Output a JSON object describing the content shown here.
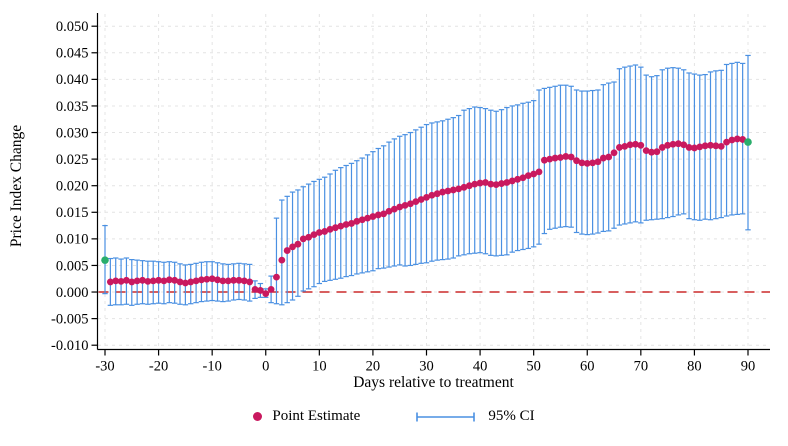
{
  "figure": {
    "y_axis_title": "Price Index Change",
    "x_axis_title": "Days relative to treatment",
    "legend": {
      "point_label": "Point Estimate",
      "ci_label": "95% CI"
    }
  },
  "colors": {
    "point": "#c9195f",
    "ci": "#4a90e2",
    "endpoint": "#2aae6c",
    "zero_line": "#cc2a2a",
    "grid": "#e4e4e4",
    "axis": "#000000"
  },
  "chart_data": {
    "type": "scatter",
    "title": "",
    "xlabel": "Days relative to treatment",
    "ylabel": "Price Index Change",
    "xlim": [
      -30,
      90
    ],
    "ylim": [
      -0.01,
      0.05
    ],
    "grid": true,
    "legend_position": "bottom",
    "zero_reference_line": 0,
    "x_ticks": {
      "values": [
        -30,
        -20,
        -10,
        0,
        10,
        20,
        30,
        40,
        50,
        60,
        70,
        80,
        90
      ],
      "labels": [
        "-30",
        "-20",
        "-10",
        "0",
        "10",
        "20",
        "30",
        "40",
        "50",
        "60",
        "70",
        "80",
        "90"
      ]
    },
    "y_ticks": {
      "values": [
        0.05,
        0.045,
        0.04,
        0.035,
        0.03,
        0.025,
        0.02,
        0.015,
        0.01,
        0.005,
        0.0,
        -0.005,
        -0.01
      ],
      "labels": [
        "0.050",
        "0.045",
        "0.040",
        "0.035",
        "0.030",
        "0.025",
        "0.020",
        "0.015",
        "0.010",
        "0.005",
        "0.000",
        "-0.005",
        "-0.010"
      ]
    },
    "days": {
      "from": -30,
      "to": 90,
      "step": 1
    },
    "endpoint_days": [
      -30,
      90
    ],
    "series": [
      {
        "name": "Point Estimate",
        "values": [
          0.006,
          0.0019,
          0.0021,
          0.002,
          0.0022,
          0.0019,
          0.0021,
          0.0022,
          0.002,
          0.0021,
          0.0022,
          0.0021,
          0.0023,
          0.0022,
          0.0019,
          0.0017,
          0.0019,
          0.0021,
          0.0023,
          0.0024,
          0.0025,
          0.0023,
          0.0021,
          0.0021,
          0.0022,
          0.0022,
          0.0021,
          0.0019,
          0.0005,
          0.0003,
          -0.0003,
          0.0005,
          0.0028,
          0.006,
          0.0078,
          0.0085,
          0.009,
          0.01,
          0.0103,
          0.0108,
          0.0112,
          0.0114,
          0.0118,
          0.0121,
          0.0124,
          0.0127,
          0.0129,
          0.0133,
          0.0136,
          0.0139,
          0.0142,
          0.0145,
          0.0147,
          0.0152,
          0.0156,
          0.016,
          0.0163,
          0.0166,
          0.017,
          0.0174,
          0.0178,
          0.0182,
          0.0185,
          0.0188,
          0.019,
          0.0192,
          0.0194,
          0.0197,
          0.02,
          0.0203,
          0.0205,
          0.0206,
          0.0203,
          0.0202,
          0.0204,
          0.0206,
          0.0209,
          0.0212,
          0.0215,
          0.0219,
          0.0222,
          0.0226,
          0.0248,
          0.025,
          0.0252,
          0.0253,
          0.0255,
          0.0254,
          0.0247,
          0.0243,
          0.0242,
          0.0243,
          0.0245,
          0.0252,
          0.0254,
          0.0262,
          0.0272,
          0.0274,
          0.0277,
          0.0278,
          0.0276,
          0.0266,
          0.0263,
          0.0264,
          0.0272,
          0.0276,
          0.0278,
          0.0279,
          0.0277,
          0.0272,
          0.0271,
          0.0273,
          0.0275,
          0.0276,
          0.0275,
          0.0274,
          0.0282,
          0.0286,
          0.0288,
          0.0287,
          0.0282
        ]
      }
    ],
    "ci_low": [
      -0.0003,
      -0.0025,
      -0.0024,
      -0.0024,
      -0.0023,
      -0.0025,
      -0.0023,
      -0.0022,
      -0.0023,
      -0.0022,
      -0.0021,
      -0.0022,
      -0.002,
      -0.0021,
      -0.0023,
      -0.0024,
      -0.0022,
      -0.002,
      -0.0018,
      -0.0017,
      -0.0016,
      -0.0017,
      -0.0018,
      -0.0017,
      -0.0015,
      -0.0014,
      -0.0015,
      -0.0017,
      -0.0012,
      -0.001,
      -0.001,
      -0.002,
      -0.0022,
      -0.0024,
      -0.002,
      -0.0015,
      -0.0008,
      0.0002,
      0.0006,
      0.001,
      0.0016,
      0.002,
      0.0022,
      0.0024,
      0.0026,
      0.0029,
      0.0031,
      0.0034,
      0.0036,
      0.0038,
      0.004,
      0.0044,
      0.0045,
      0.0047,
      0.0049,
      0.0051,
      0.0049,
      0.005,
      0.0052,
      0.0054,
      0.0055,
      0.0058,
      0.006,
      0.0061,
      0.0062,
      0.0064,
      0.0068,
      0.007,
      0.0072,
      0.0073,
      0.0074,
      0.0072,
      0.0069,
      0.0068,
      0.0069,
      0.007,
      0.0075,
      0.0078,
      0.008,
      0.0082,
      0.0085,
      0.009,
      0.011,
      0.0118,
      0.012,
      0.0122,
      0.0123,
      0.0122,
      0.0112,
      0.0109,
      0.0108,
      0.0109,
      0.0111,
      0.0114,
      0.0115,
      0.012,
      0.0126,
      0.0128,
      0.013,
      0.0132,
      0.013,
      0.0135,
      0.0136,
      0.0137,
      0.0138,
      0.014,
      0.0142,
      0.0145,
      0.0147,
      0.0138,
      0.0136,
      0.0135,
      0.0137,
      0.0136,
      0.0138,
      0.014,
      0.0143,
      0.0145,
      0.0146,
      0.0147,
      0.0117
    ],
    "ci_high": [
      0.0125,
      0.0063,
      0.0064,
      0.0062,
      0.0064,
      0.0061,
      0.006,
      0.0059,
      0.0058,
      0.0058,
      0.0057,
      0.0056,
      0.0057,
      0.0056,
      0.0053,
      0.0051,
      0.0052,
      0.0054,
      0.0056,
      0.0057,
      0.0057,
      0.0055,
      0.0053,
      0.0052,
      0.0053,
      0.0054,
      0.0053,
      0.0052,
      0.0021,
      0.0016,
      0.0006,
      0.003,
      0.0139,
      0.0173,
      0.018,
      0.0188,
      0.0192,
      0.0198,
      0.0203,
      0.0208,
      0.0212,
      0.0216,
      0.0222,
      0.0229,
      0.0234,
      0.0238,
      0.0242,
      0.0247,
      0.0252,
      0.0258,
      0.0264,
      0.027,
      0.0275,
      0.0282,
      0.0288,
      0.0293,
      0.0296,
      0.03,
      0.0305,
      0.031,
      0.0315,
      0.0318,
      0.032,
      0.0322,
      0.0325,
      0.0328,
      0.0332,
      0.0342,
      0.0345,
      0.0348,
      0.0347,
      0.0345,
      0.0342,
      0.034,
      0.0343,
      0.0347,
      0.035,
      0.0352,
      0.0355,
      0.0357,
      0.036,
      0.038,
      0.0383,
      0.0385,
      0.0387,
      0.0389,
      0.0389,
      0.0387,
      0.038,
      0.0378,
      0.0378,
      0.0379,
      0.038,
      0.039,
      0.0393,
      0.0395,
      0.042,
      0.0423,
      0.0425,
      0.0427,
      0.0423,
      0.0408,
      0.0405,
      0.0407,
      0.0418,
      0.0421,
      0.0422,
      0.0421,
      0.0418,
      0.0412,
      0.041,
      0.0408,
      0.0409,
      0.0414,
      0.0416,
      0.0417,
      0.0428,
      0.043,
      0.0432,
      0.043,
      0.0445
    ]
  }
}
